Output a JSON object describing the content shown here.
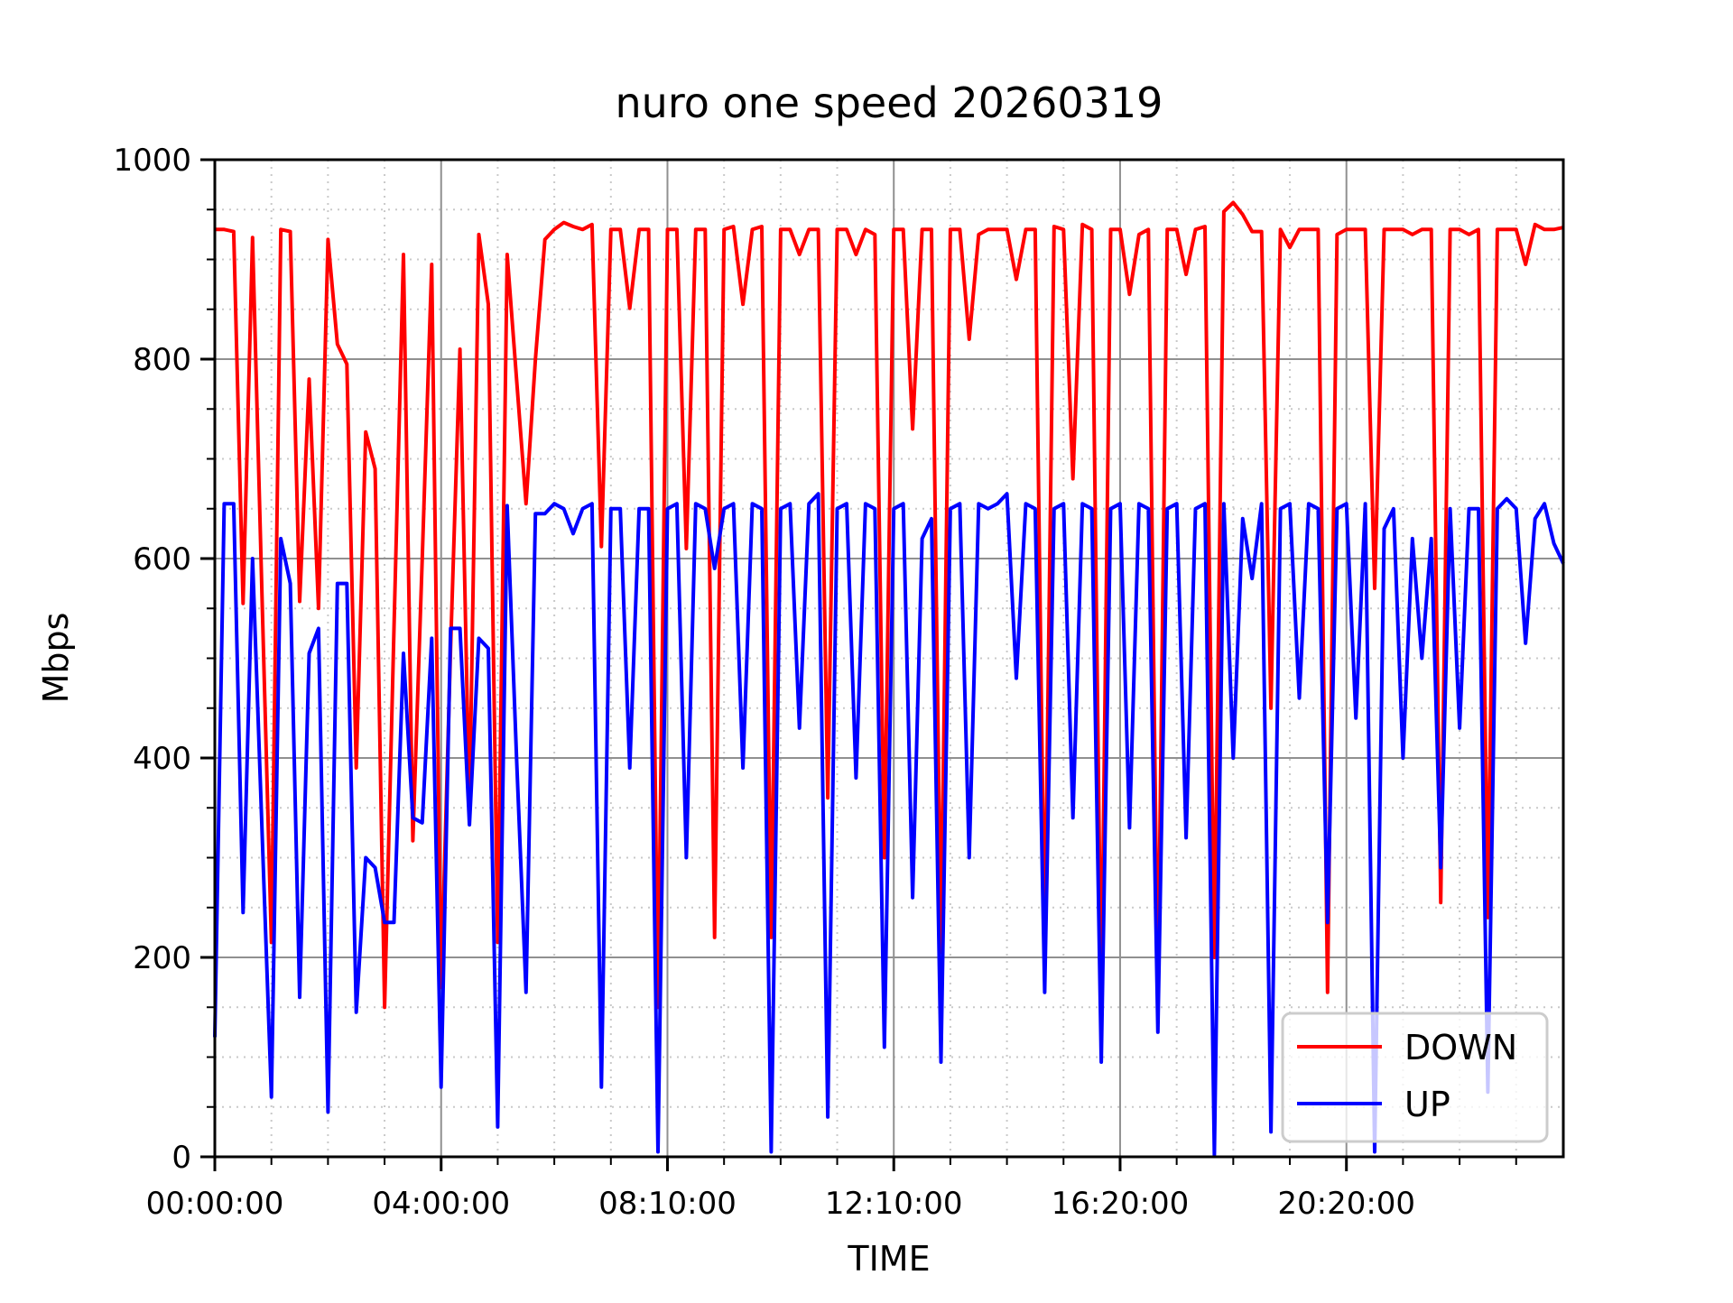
{
  "figure": {
    "title": "nuro one speed 20260319",
    "xlabel": "TIME",
    "ylabel": "Mbps"
  },
  "axes": {
    "ylim": [
      0,
      1000
    ],
    "y_ticks": [
      {
        "label": "0",
        "value": 0
      },
      {
        "label": "200",
        "value": 200
      },
      {
        "label": "400",
        "value": 400
      },
      {
        "label": "600",
        "value": 600
      },
      {
        "label": "800",
        "value": 800
      },
      {
        "label": "1000",
        "value": 1000
      }
    ],
    "x_ticks": [
      {
        "label": "00:00:00",
        "sample": 0
      },
      {
        "label": "04:00:00",
        "sample": 24
      },
      {
        "label": "08:10:00",
        "sample": 48
      },
      {
        "label": "12:10:00",
        "sample": 72
      },
      {
        "label": "16:20:00",
        "sample": 96
      },
      {
        "label": "20:20:00",
        "sample": 120
      }
    ]
  },
  "legend": {
    "position": "lower right",
    "entries": [
      {
        "label": "DOWN",
        "color": "#ff0000"
      },
      {
        "label": "UP",
        "color": "#0000ff"
      }
    ]
  },
  "colors": {
    "down_line": "#ff0000",
    "up_line": "#0000ff",
    "major_grid": "#909090",
    "minor_grid": "#c9c9c9",
    "spine": "#000000",
    "legend_border": "#cccccc"
  },
  "chart_data": {
    "type": "line",
    "title": "nuro one speed 20260319",
    "xlabel": "TIME",
    "ylabel": "Mbps",
    "ylim": [
      0,
      1000
    ],
    "grid": {
      "major": true,
      "minor": true
    },
    "legend_position": "lower right",
    "n_samples": 144,
    "x_tick_labels": [
      "00:00:00",
      "04:00:00",
      "08:10:00",
      "12:10:00",
      "16:20:00",
      "20:20:00"
    ],
    "x_tick_samples": [
      0,
      24,
      48,
      72,
      96,
      120
    ],
    "series": [
      {
        "name": "DOWN",
        "color": "#ff0000",
        "values": [
          930,
          930,
          928,
          555,
          922,
          565,
          215,
          930,
          928,
          557,
          780,
          550,
          920,
          815,
          795,
          390,
          727,
          690,
          150,
          530,
          905,
          317,
          600,
          895,
          170,
          510,
          810,
          345,
          925,
          855,
          215,
          905,
          780,
          655,
          800,
          920,
          930,
          937,
          933,
          930,
          935,
          612,
          930,
          930,
          851,
          930,
          930,
          150,
          930,
          930,
          610,
          930,
          930,
          220,
          930,
          933,
          855,
          930,
          933,
          220,
          930,
          930,
          905,
          930,
          930,
          360,
          930,
          930,
          905,
          930,
          925,
          300,
          930,
          930,
          730,
          930,
          930,
          205,
          930,
          930,
          820,
          925,
          930,
          930,
          930,
          880,
          930,
          930,
          205,
          933,
          930,
          680,
          935,
          930,
          150,
          930,
          930,
          865,
          925,
          930,
          155,
          930,
          930,
          885,
          930,
          933,
          200,
          948,
          957,
          945,
          928,
          928,
          450,
          930,
          912,
          930,
          930,
          930,
          165,
          925,
          930,
          930,
          930,
          570,
          930,
          930,
          930,
          925,
          930,
          930,
          255,
          930,
          930,
          925,
          930,
          240,
          930,
          930,
          930,
          895,
          935,
          930,
          930,
          932
        ]
      },
      {
        "name": "UP",
        "color": "#0000ff",
        "values": [
          120,
          655,
          655,
          245,
          600,
          330,
          60,
          620,
          575,
          160,
          505,
          530,
          45,
          575,
          575,
          145,
          300,
          290,
          235,
          235,
          505,
          340,
          335,
          520,
          70,
          530,
          530,
          333,
          520,
          510,
          30,
          653,
          400,
          165,
          645,
          645,
          655,
          650,
          625,
          650,
          655,
          70,
          650,
          650,
          390,
          650,
          650,
          5,
          650,
          655,
          300,
          655,
          650,
          590,
          650,
          655,
          390,
          655,
          650,
          5,
          650,
          655,
          430,
          655,
          665,
          40,
          650,
          655,
          380,
          655,
          650,
          110,
          650,
          655,
          260,
          620,
          640,
          95,
          650,
          655,
          300,
          655,
          650,
          655,
          665,
          480,
          655,
          650,
          165,
          650,
          655,
          340,
          655,
          650,
          95,
          650,
          655,
          330,
          655,
          650,
          125,
          650,
          655,
          320,
          650,
          655,
          2,
          655,
          400,
          640,
          580,
          655,
          25,
          650,
          655,
          460,
          655,
          650,
          235,
          650,
          655,
          440,
          655,
          5,
          630,
          650,
          400,
          620,
          500,
          620,
          290,
          650,
          430,
          650,
          650,
          65,
          650,
          660,
          650,
          515,
          640,
          655,
          615,
          595
        ]
      }
    ]
  }
}
